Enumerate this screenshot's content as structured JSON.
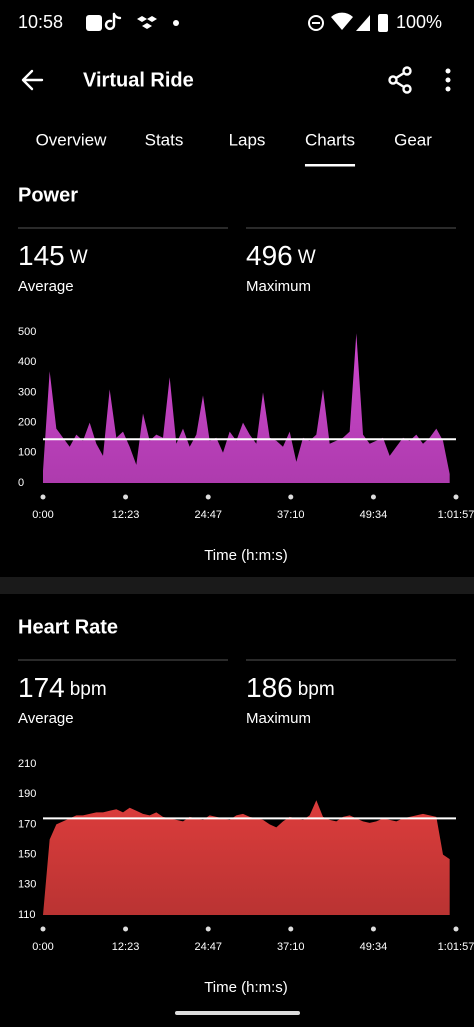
{
  "status_bar": {
    "time": "10:58",
    "battery": "100%"
  },
  "header": {
    "title": "Virtual Ride"
  },
  "tabs": [
    "Overview",
    "Stats",
    "Laps",
    "Charts",
    "Gear"
  ],
  "active_tab": 3,
  "chart_data": [
    {
      "type": "area",
      "title": "Power",
      "stats": [
        {
          "value": 145,
          "unit": "W",
          "label": "Average"
        },
        {
          "value": 496,
          "unit": "W",
          "label": "Maximum"
        }
      ],
      "color": "#d94ad9",
      "x": [
        0,
        60,
        120,
        180,
        240,
        300,
        360,
        420,
        480,
        540,
        600,
        660,
        720,
        780,
        840,
        900,
        960,
        1020,
        1080,
        1140,
        1200,
        1260,
        1320,
        1380,
        1440,
        1500,
        1560,
        1620,
        1680,
        1740,
        1800,
        1860,
        1920,
        1980,
        2040,
        2100,
        2160,
        2220,
        2280,
        2340,
        2400,
        2460,
        2520,
        2580,
        2640,
        2700,
        2760,
        2820,
        2880,
        2940,
        3000,
        3060,
        3120,
        3180,
        3240,
        3300,
        3360,
        3420,
        3480,
        3540,
        3600,
        3660
      ],
      "values": [
        40,
        370,
        180,
        150,
        120,
        160,
        140,
        200,
        130,
        90,
        310,
        150,
        170,
        120,
        60,
        230,
        140,
        160,
        150,
        350,
        130,
        180,
        120,
        160,
        290,
        140,
        150,
        100,
        170,
        140,
        200,
        160,
        130,
        300,
        150,
        140,
        120,
        170,
        70,
        150,
        140,
        160,
        310,
        130,
        140,
        150,
        170,
        496,
        160,
        130,
        140,
        150,
        90,
        120,
        150,
        140,
        160,
        130,
        150,
        180,
        140,
        30
      ],
      "xlim": [
        0,
        3717
      ],
      "xticks": [
        {
          "value": 0,
          "label": "0:00"
        },
        {
          "value": 743,
          "label": "12:23"
        },
        {
          "value": 1487,
          "label": "24:47"
        },
        {
          "value": 2230,
          "label": "37:10"
        },
        {
          "value": 2974,
          "label": "49:34"
        },
        {
          "value": 3717,
          "label": "1:01:57"
        }
      ],
      "ylim": [
        0,
        500
      ],
      "yticks": [
        0,
        100,
        200,
        300,
        400,
        500
      ],
      "xlabel": "Time (h:m:s)"
    },
    {
      "type": "area",
      "title": "Heart Rate",
      "stats": [
        {
          "value": 174,
          "unit": "bpm",
          "label": "Average"
        },
        {
          "value": 186,
          "unit": "bpm",
          "label": "Maximum"
        }
      ],
      "color": "#e8403f",
      "x": [
        0,
        60,
        120,
        180,
        240,
        300,
        360,
        420,
        480,
        540,
        600,
        660,
        720,
        780,
        840,
        900,
        960,
        1020,
        1080,
        1140,
        1200,
        1260,
        1320,
        1380,
        1440,
        1500,
        1560,
        1620,
        1680,
        1740,
        1800,
        1860,
        1920,
        1980,
        2040,
        2100,
        2160,
        2220,
        2280,
        2340,
        2400,
        2460,
        2520,
        2580,
        2640,
        2700,
        2760,
        2820,
        2880,
        2940,
        3000,
        3060,
        3120,
        3180,
        3240,
        3300,
        3360,
        3420,
        3480,
        3540,
        3600,
        3660
      ],
      "values": [
        110,
        160,
        170,
        172,
        174,
        176,
        176,
        177,
        178,
        178,
        179,
        180,
        178,
        181,
        179,
        177,
        176,
        178,
        175,
        174,
        173,
        172,
        175,
        174,
        173,
        176,
        175,
        174,
        173,
        176,
        177,
        175,
        174,
        173,
        170,
        168,
        172,
        175,
        174,
        173,
        176,
        186,
        175,
        173,
        172,
        175,
        176,
        174,
        172,
        171,
        172,
        174,
        173,
        172,
        174,
        175,
        176,
        177,
        176,
        175,
        150,
        147
      ],
      "xlim": [
        0,
        3717
      ],
      "xticks": [
        {
          "value": 0,
          "label": "0:00"
        },
        {
          "value": 743,
          "label": "12:23"
        },
        {
          "value": 1487,
          "label": "24:47"
        },
        {
          "value": 2230,
          "label": "37:10"
        },
        {
          "value": 2974,
          "label": "49:34"
        },
        {
          "value": 3717,
          "label": "1:01:57"
        }
      ],
      "ylim": [
        110,
        210
      ],
      "yticks": [
        110,
        130,
        150,
        170,
        190,
        210
      ],
      "xlabel": "Time (h:m:s)"
    }
  ]
}
